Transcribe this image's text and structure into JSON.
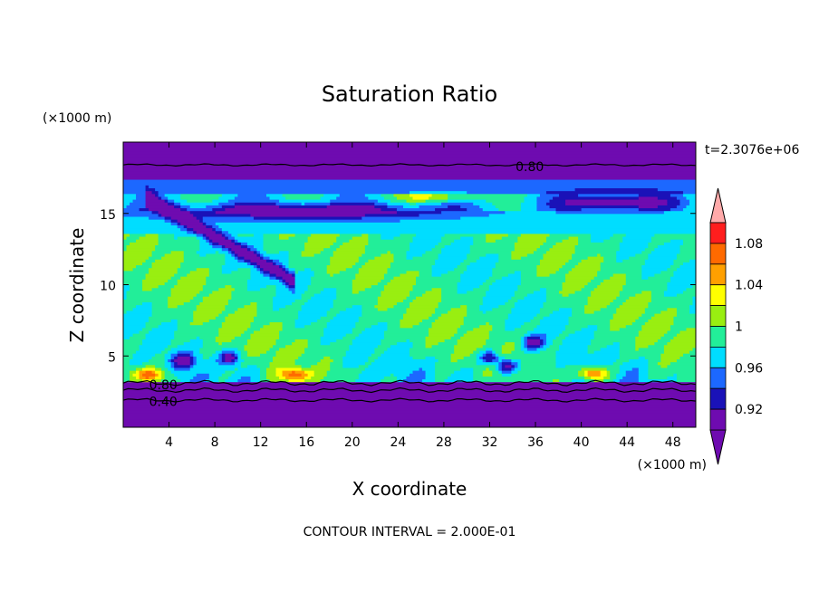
{
  "chart_data": {
    "type": "heatmap",
    "title": "Saturation Ratio",
    "xlabel": "X coordinate",
    "ylabel": "Z coordinate",
    "x_units": "(×1000 m)",
    "y_units": "(×1000 m)",
    "time_label": "t=2.3076e+06",
    "footer": "CONTOUR INTERVAL = 2.000E-01",
    "xlim": [
      0,
      50
    ],
    "ylim": [
      0,
      20
    ],
    "x_ticks": [
      4,
      8,
      12,
      16,
      20,
      24,
      28,
      32,
      36,
      40,
      44,
      48
    ],
    "y_ticks": [
      5,
      10,
      15
    ],
    "colorbar": {
      "levels": [
        0.9,
        0.92,
        0.94,
        0.96,
        0.98,
        1.0,
        1.02,
        1.04,
        1.06,
        1.08,
        1.1
      ],
      "tick_labels": [
        "0.92",
        "0.96",
        "1",
        "1.04",
        "1.08"
      ],
      "tick_values": [
        0.92,
        0.96,
        1.0,
        1.04,
        1.08
      ],
      "colors": [
        "#6e0bb0",
        "#1a12b8",
        "#1c68ff",
        "#00ddff",
        "#22ee99",
        "#99ee11",
        "#ffff00",
        "#ffa000",
        "#ff6a00",
        "#ff1e1e"
      ],
      "under_color": "#6e0bb0",
      "over_color": "#ffaaaa"
    },
    "contour_labels": [
      {
        "text": "0.80",
        "x": 35.5,
        "z": 18.3
      },
      {
        "text": "0.80",
        "x": 3.5,
        "z": 3.0
      },
      {
        "text": "0.40",
        "x": 3.5,
        "z": 1.8
      }
    ]
  }
}
